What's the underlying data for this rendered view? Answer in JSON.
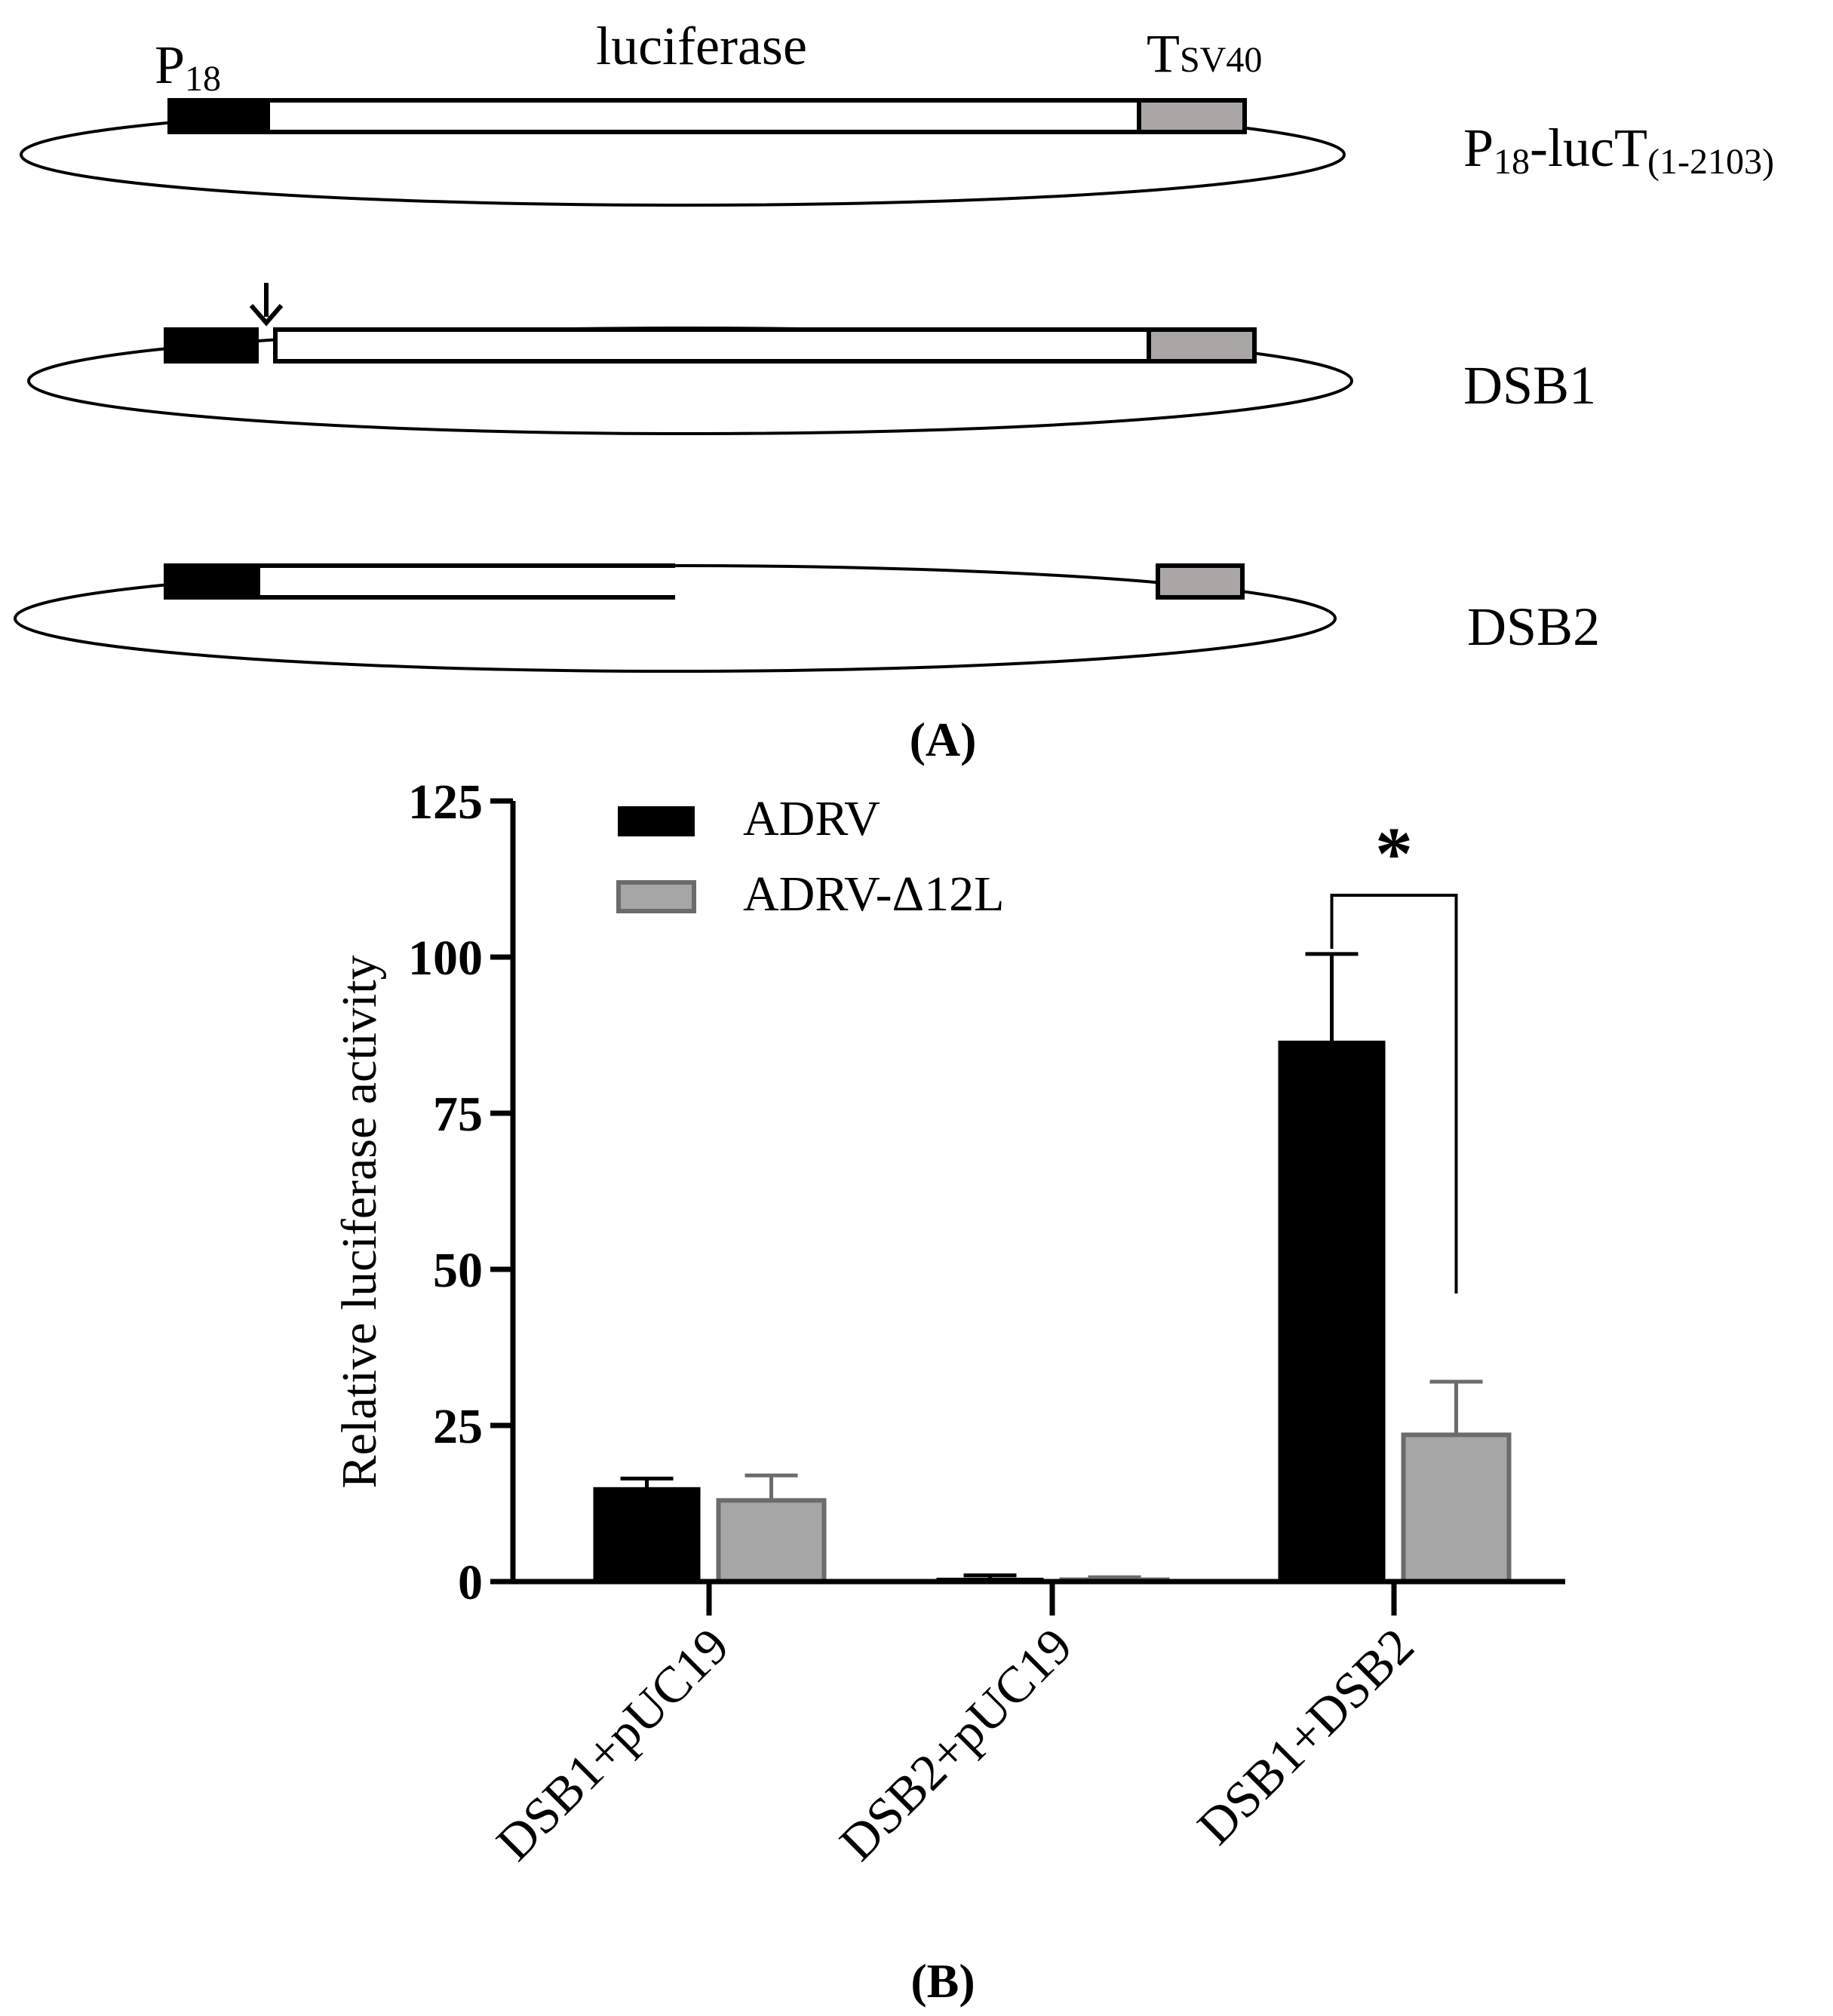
{
  "panel_a": {
    "label": "(A)",
    "constructs": [
      {
        "name": "P18-lucT(1-2103)",
        "name_main": "P",
        "name_sub": "18",
        "name_mid": "-lucT",
        "name_sub2": "(1-2103)"
      },
      {
        "name": "DSB1"
      },
      {
        "name": "DSB2"
      }
    ],
    "element_labels": {
      "promoter_main": "P",
      "promoter_sub": "18",
      "gene": "luciferase",
      "terminator_main": "T",
      "terminator_sub": "SV40"
    },
    "colors": {
      "promoter": "#000000",
      "gene": "#ffffff",
      "terminator": "#aaa6a6"
    }
  },
  "panel_b": {
    "label": "(B)",
    "significance": "*"
  },
  "chart_data": {
    "type": "bar",
    "ylabel": "Relative luciferase activity",
    "xlabel": "",
    "ylim": [
      0,
      125
    ],
    "yticks": [
      0,
      25,
      50,
      75,
      100,
      125
    ],
    "categories": [
      "DSB1+pUC19",
      "DSB2+pUC19",
      "DSB1+DSB2"
    ],
    "series": [
      {
        "name": "ADRV",
        "color": "#000000",
        "values": [
          15,
          0.5,
          86.5
        ],
        "errors": [
          1.5,
          0.5,
          14
        ]
      },
      {
        "name": "ADRV-Δ12L",
        "color": "#a6a6a6",
        "values": [
          13,
          0.3,
          23.5
        ],
        "errors": [
          4,
          0.4,
          8.5
        ]
      }
    ],
    "legend": "top-left",
    "grid": false,
    "annotations": [
      {
        "text": "*",
        "between": [
          "DSB1+DSB2 ADRV",
          "DSB1+DSB2 ADRV-Δ12L"
        ]
      }
    ]
  }
}
